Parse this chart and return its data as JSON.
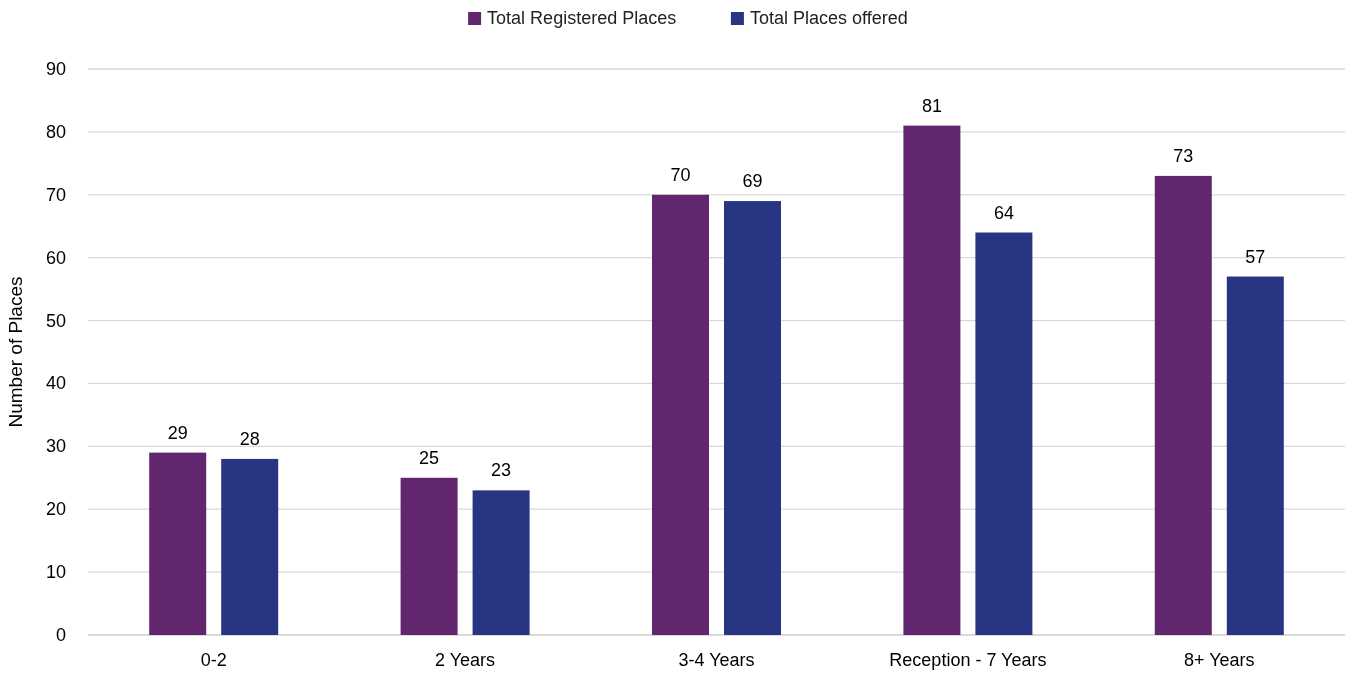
{
  "chart_data": {
    "type": "bar",
    "ylabel": "Number of Places",
    "categories": [
      "0-2",
      "2 Years",
      "3-4 Years",
      "Reception - 7 Years",
      "8+ Years"
    ],
    "series": [
      {
        "name": "Total Registered Places",
        "color": "#62266f",
        "values": [
          29,
          25,
          70,
          81,
          73
        ]
      },
      {
        "name": "Total Places offered",
        "color": "#283583",
        "values": [
          28,
          23,
          69,
          64,
          57
        ]
      }
    ],
    "ylim": [
      0,
      90
    ],
    "yticks": [
      0,
      10,
      20,
      30,
      40,
      50,
      60,
      70,
      80,
      90
    ],
    "grid": "y",
    "legend": "top",
    "data_labels": true
  }
}
